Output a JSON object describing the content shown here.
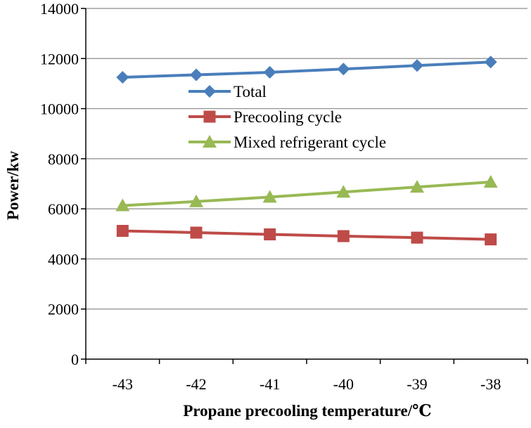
{
  "chart_data": {
    "type": "line",
    "title": "",
    "xlabel": "Propane precooling temperature/℃",
    "ylabel": "Power/kw",
    "categories": [
      "-43",
      "-42",
      "-41",
      "-40",
      "-39",
      "-38"
    ],
    "ylim": [
      0,
      14000
    ],
    "yticks": [
      "0",
      "2000",
      "4000",
      "6000",
      "8000",
      "10000",
      "12000",
      "14000"
    ],
    "grid": "horizontal",
    "legend_position": "center-top",
    "series": [
      {
        "name": "Total",
        "color": "#4a7ebb",
        "marker": "diamond",
        "values": [
          11250,
          11350,
          11450,
          11580,
          11720,
          11860
        ]
      },
      {
        "name": "Precooling cycle",
        "color": "#be4b48",
        "marker": "square",
        "values": [
          5120,
          5050,
          4980,
          4910,
          4850,
          4780
        ]
      },
      {
        "name": "Mixed refrigerant cycle",
        "color": "#98b954",
        "marker": "triangle",
        "values": [
          6130,
          6290,
          6470,
          6670,
          6870,
          7070
        ]
      }
    ]
  }
}
